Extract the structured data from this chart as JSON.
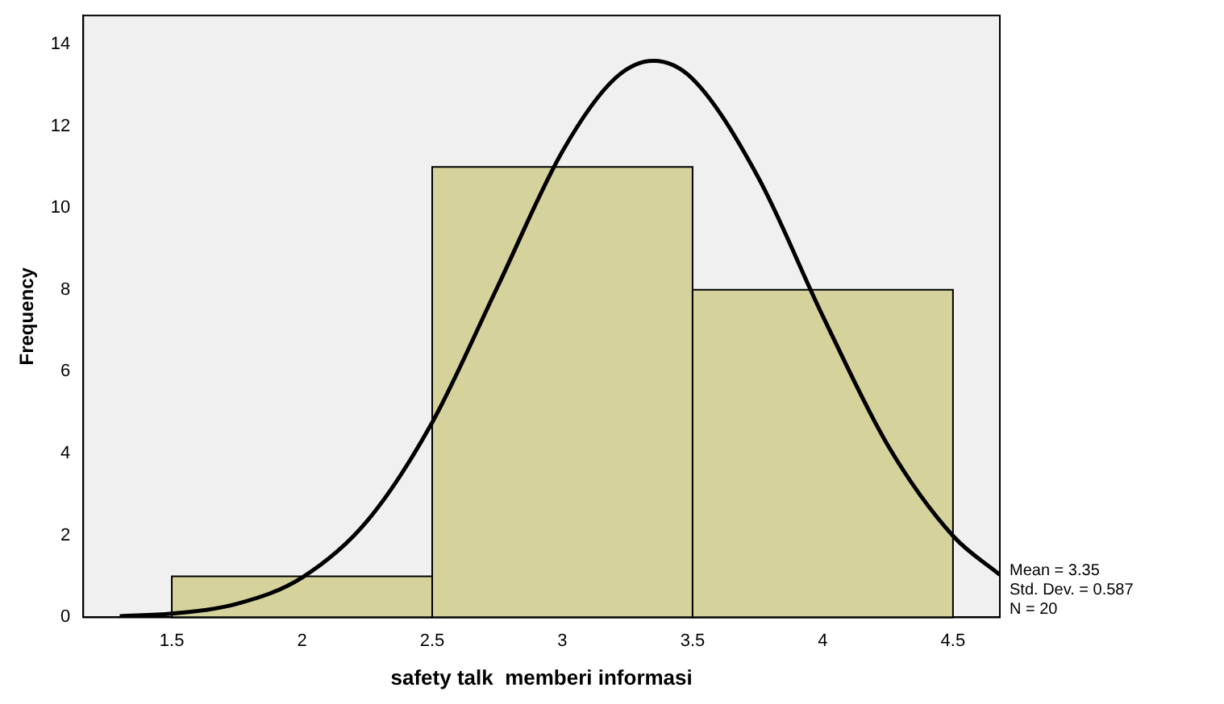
{
  "chart_data": {
    "type": "histogram",
    "xlabel": "safety talk  memberi informasi",
    "ylabel": "Frequency",
    "bins": [
      1.5,
      2.5,
      3.5,
      4.5
    ],
    "values": [
      1,
      11,
      8
    ],
    "color": "#d6d29c",
    "series": [
      {
        "type": "line",
        "color": "#000000",
        "x": [
          1.3,
          1.5,
          1.75,
          2.0,
          2.25,
          2.5,
          2.75,
          3.0,
          3.2,
          3.35,
          3.5,
          3.75,
          4.0,
          4.25,
          4.5,
          4.68
        ],
        "values": [
          0.03,
          0.09,
          0.33,
          0.97,
          2.35,
          4.76,
          8.06,
          11.38,
          13.15,
          13.59,
          13.15,
          10.77,
          7.36,
          4.2,
          1.99,
          1.04
        ]
      }
    ],
    "marker": "none",
    "xlim": [
      1.16,
      4.68
    ],
    "ylim": [
      0,
      14.7
    ],
    "xticks": [
      1.5,
      2,
      2.5,
      3,
      3.5,
      4,
      4.5
    ],
    "yticks": [
      0,
      2,
      4,
      6,
      8,
      10,
      12,
      14
    ],
    "legend": false,
    "annotations": [
      "Mean = 3.35",
      "Std. Dev. = 0.587",
      "N = 20"
    ]
  }
}
